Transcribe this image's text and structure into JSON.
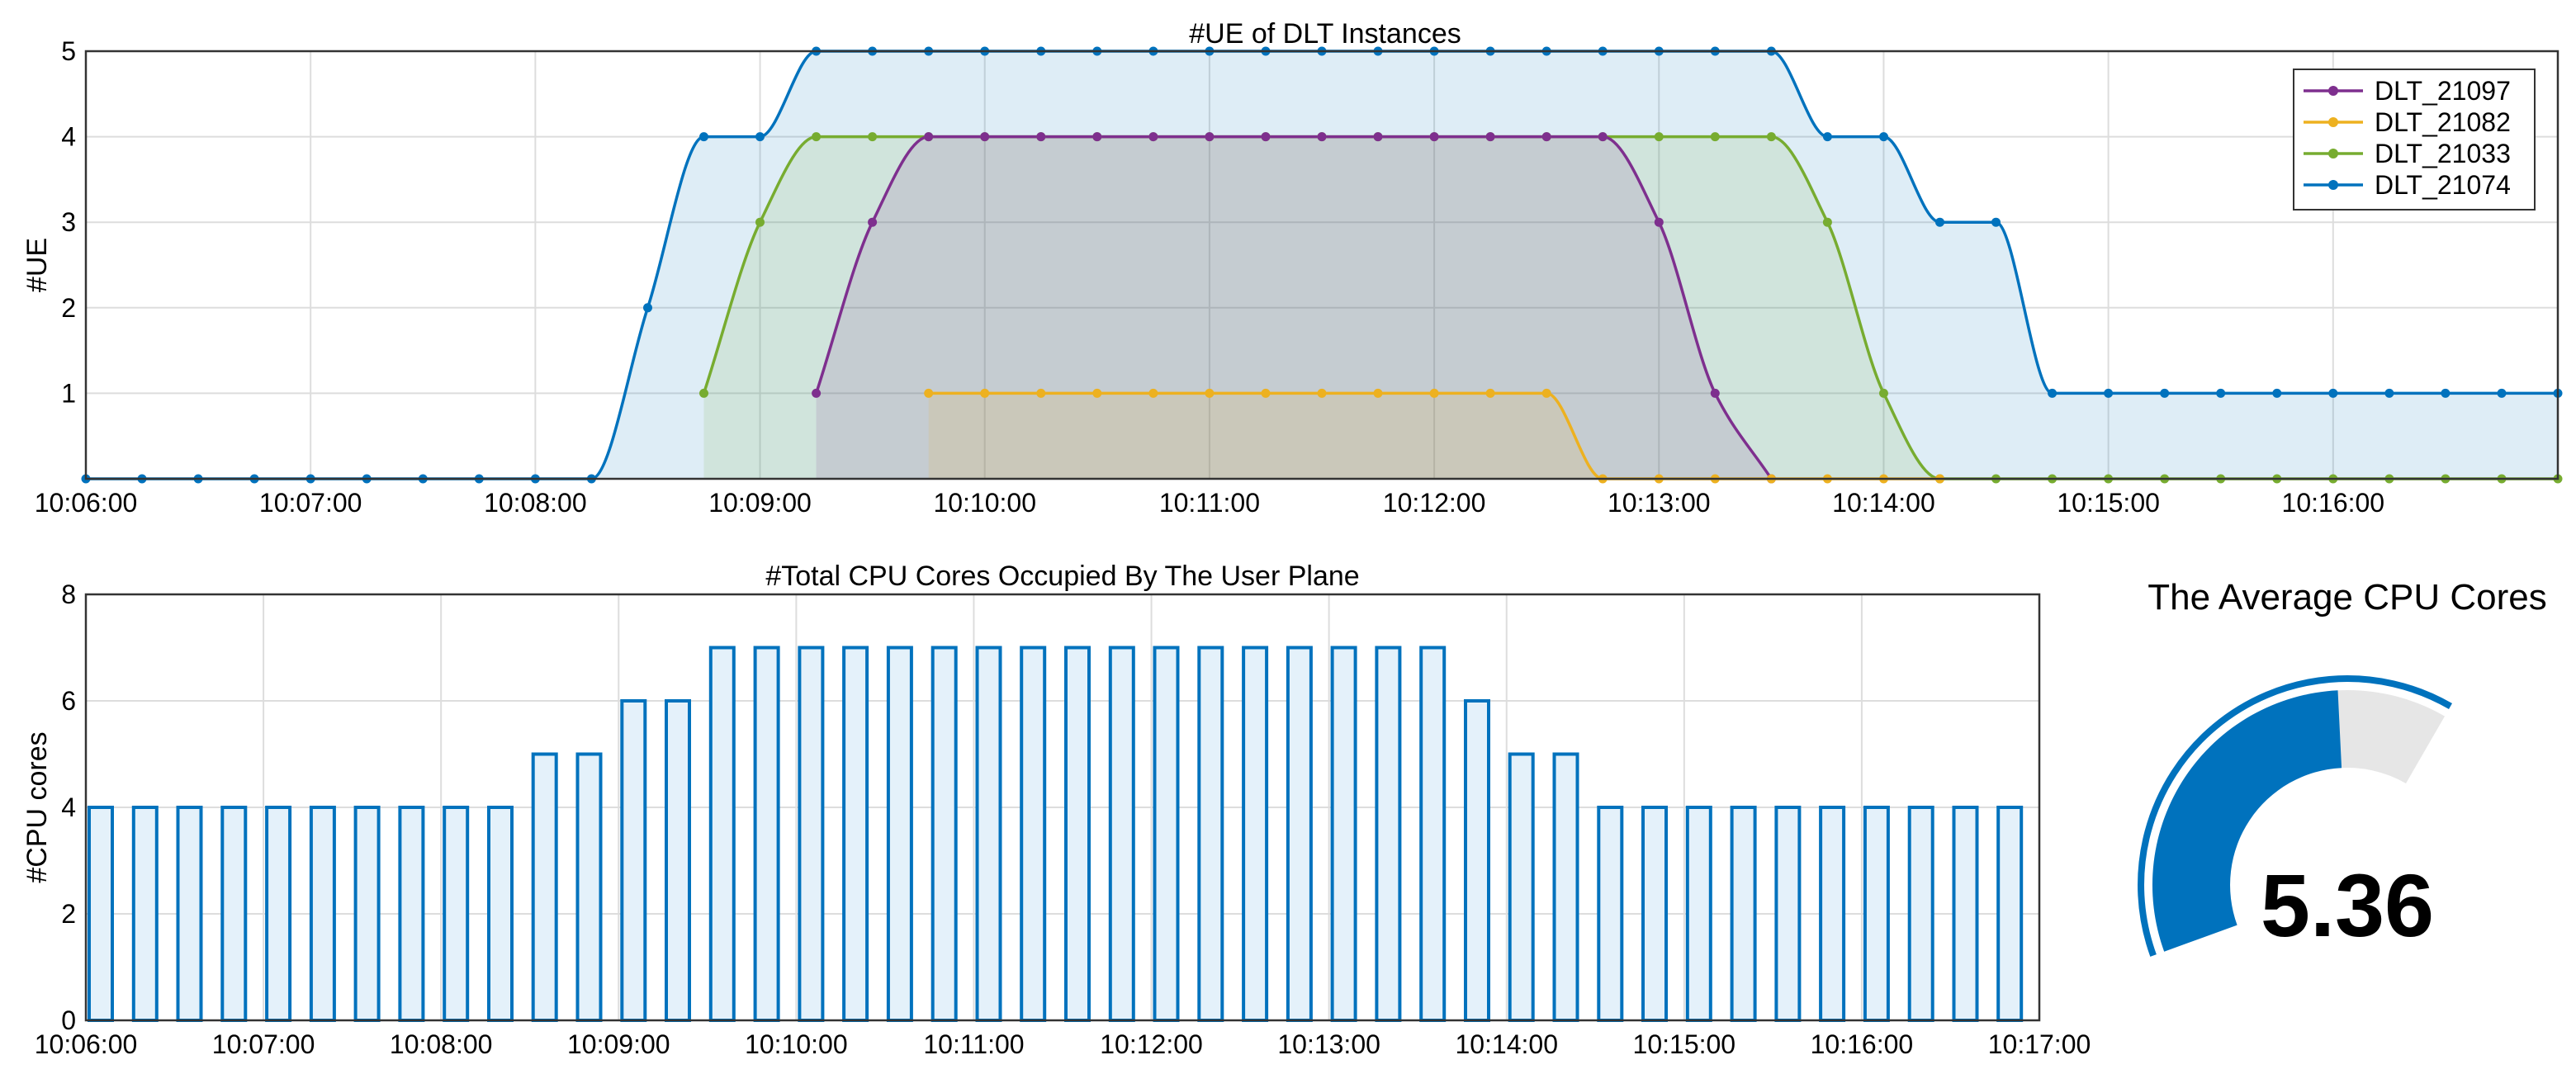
{
  "chart_data": [
    {
      "type": "area",
      "title": "#UE of DLT Instances",
      "ylabel": "#UE",
      "xlabel": "",
      "ylim": [
        0,
        5
      ],
      "yticks": [
        "1",
        "2",
        "3",
        "4",
        "5"
      ],
      "xlim": [
        "10:06:00",
        "10:17:00"
      ],
      "xticks": [
        "10:06:00",
        "10:07:00",
        "10:08:00",
        "10:09:00",
        "10:10:00",
        "10:11:00",
        "10:12:00",
        "10:13:00",
        "10:14:00",
        "10:15:00",
        "10:16:00"
      ],
      "grid": true,
      "legend": "top-right",
      "series": [
        {
          "name": "DLT_21097",
          "color": "#7e2f8e",
          "points": [
            [
              "10:09:15",
              1
            ],
            [
              "10:09:30",
              3
            ],
            [
              "10:09:45",
              4
            ],
            [
              "10:10:00",
              4
            ],
            [
              "10:10:15",
              4
            ],
            [
              "10:10:30",
              4
            ],
            [
              "10:10:45",
              4
            ],
            [
              "10:11:00",
              4
            ],
            [
              "10:11:15",
              4
            ],
            [
              "10:11:30",
              4
            ],
            [
              "10:11:45",
              4
            ],
            [
              "10:12:00",
              4
            ],
            [
              "10:12:15",
              4
            ],
            [
              "10:12:30",
              4
            ],
            [
              "10:12:45",
              4
            ],
            [
              "10:13:00",
              3
            ],
            [
              "10:13:15",
              1
            ],
            [
              "10:13:30",
              0
            ]
          ]
        },
        {
          "name": "DLT_21082",
          "color": "#edb120",
          "points": [
            [
              "10:09:45",
              1
            ],
            [
              "10:10:00",
              1
            ],
            [
              "10:10:15",
              1
            ],
            [
              "10:10:30",
              1
            ],
            [
              "10:10:45",
              1
            ],
            [
              "10:11:00",
              1
            ],
            [
              "10:11:15",
              1
            ],
            [
              "10:11:30",
              1
            ],
            [
              "10:11:45",
              1
            ],
            [
              "10:12:00",
              1
            ],
            [
              "10:12:15",
              1
            ],
            [
              "10:12:30",
              1
            ],
            [
              "10:12:45",
              0
            ],
            [
              "10:13:00",
              0
            ],
            [
              "10:13:15",
              0
            ],
            [
              "10:13:30",
              0
            ],
            [
              "10:13:45",
              0
            ],
            [
              "10:14:00",
              0
            ],
            [
              "10:14:15",
              0
            ]
          ]
        },
        {
          "name": "DLT_21033",
          "color": "#77ac30",
          "points": [
            [
              "10:08:45",
              1
            ],
            [
              "10:09:00",
              3
            ],
            [
              "10:09:15",
              4
            ],
            [
              "10:09:30",
              4
            ],
            [
              "10:09:45",
              4
            ],
            [
              "10:10:00",
              4
            ],
            [
              "10:10:15",
              4
            ],
            [
              "10:10:30",
              4
            ],
            [
              "10:10:45",
              4
            ],
            [
              "10:11:00",
              4
            ],
            [
              "10:11:15",
              4
            ],
            [
              "10:11:30",
              4
            ],
            [
              "10:11:45",
              4
            ],
            [
              "10:12:00",
              4
            ],
            [
              "10:12:15",
              4
            ],
            [
              "10:12:30",
              4
            ],
            [
              "10:12:45",
              4
            ],
            [
              "10:13:00",
              4
            ],
            [
              "10:13:15",
              4
            ],
            [
              "10:13:30",
              4
            ],
            [
              "10:13:45",
              3
            ],
            [
              "10:14:00",
              1
            ],
            [
              "10:14:15",
              0
            ],
            [
              "10:14:30",
              0
            ],
            [
              "10:14:45",
              0
            ],
            [
              "10:15:00",
              0
            ],
            [
              "10:15:15",
              0
            ],
            [
              "10:15:30",
              0
            ],
            [
              "10:15:45",
              0
            ],
            [
              "10:16:00",
              0
            ],
            [
              "10:16:15",
              0
            ],
            [
              "10:16:30",
              0
            ],
            [
              "10:16:45",
              0
            ],
            [
              "10:17:00",
              0
            ]
          ]
        },
        {
          "name": "DLT_21074",
          "color": "#0072bd",
          "points": [
            [
              "10:06:00",
              0
            ],
            [
              "10:06:15",
              0
            ],
            [
              "10:06:30",
              0
            ],
            [
              "10:06:45",
              0
            ],
            [
              "10:07:00",
              0
            ],
            [
              "10:07:15",
              0
            ],
            [
              "10:07:30",
              0
            ],
            [
              "10:07:45",
              0
            ],
            [
              "10:08:00",
              0
            ],
            [
              "10:08:15",
              0
            ],
            [
              "10:08:30",
              2
            ],
            [
              "10:08:45",
              4
            ],
            [
              "10:09:00",
              4
            ],
            [
              "10:09:15",
              5
            ],
            [
              "10:09:30",
              5
            ],
            [
              "10:09:45",
              5
            ],
            [
              "10:10:00",
              5
            ],
            [
              "10:10:15",
              5
            ],
            [
              "10:10:30",
              5
            ],
            [
              "10:10:45",
              5
            ],
            [
              "10:11:00",
              5
            ],
            [
              "10:11:15",
              5
            ],
            [
              "10:11:30",
              5
            ],
            [
              "10:11:45",
              5
            ],
            [
              "10:12:00",
              5
            ],
            [
              "10:12:15",
              5
            ],
            [
              "10:12:30",
              5
            ],
            [
              "10:12:45",
              5
            ],
            [
              "10:13:00",
              5
            ],
            [
              "10:13:15",
              5
            ],
            [
              "10:13:30",
              5
            ],
            [
              "10:13:45",
              4
            ],
            [
              "10:14:00",
              4
            ],
            [
              "10:14:15",
              3
            ],
            [
              "10:14:30",
              3
            ],
            [
              "10:14:45",
              1
            ],
            [
              "10:15:00",
              1
            ],
            [
              "10:15:15",
              1
            ],
            [
              "10:15:30",
              1
            ],
            [
              "10:15:45",
              1
            ],
            [
              "10:16:00",
              1
            ],
            [
              "10:16:15",
              1
            ],
            [
              "10:16:30",
              1
            ],
            [
              "10:16:45",
              1
            ],
            [
              "10:17:00",
              1
            ]
          ]
        }
      ]
    },
    {
      "type": "bar",
      "title": "#Total CPU Cores Occupied By The User Plane",
      "ylabel": "#CPU cores",
      "xlabel": "",
      "ylim": [
        0,
        8
      ],
      "yticks": [
        "0",
        "2",
        "4",
        "6",
        "8"
      ],
      "xlim": [
        "10:06:00",
        "10:17:00"
      ],
      "xticks": [
        "10:06:00",
        "10:07:00",
        "10:08:00",
        "10:09:00",
        "10:10:00",
        "10:11:00",
        "10:12:00",
        "10:13:00",
        "10:14:00",
        "10:15:00",
        "10:16:00",
        "10:17:00"
      ],
      "grid": true,
      "color": "#0072bd",
      "fill": "#e4f1fa",
      "x": [
        "10:06:00",
        "10:06:15",
        "10:06:30",
        "10:06:45",
        "10:07:00",
        "10:07:15",
        "10:07:30",
        "10:07:45",
        "10:08:00",
        "10:08:15",
        "10:08:30",
        "10:08:45",
        "10:09:00",
        "10:09:15",
        "10:09:30",
        "10:09:45",
        "10:10:00",
        "10:10:15",
        "10:10:30",
        "10:10:45",
        "10:11:00",
        "10:11:15",
        "10:11:30",
        "10:11:45",
        "10:12:00",
        "10:12:15",
        "10:12:30",
        "10:12:45",
        "10:13:00",
        "10:13:15",
        "10:13:30",
        "10:13:45",
        "10:14:00",
        "10:14:15",
        "10:14:30",
        "10:14:45",
        "10:15:00",
        "10:15:15",
        "10:15:30",
        "10:15:45",
        "10:16:00",
        "10:16:15",
        "10:16:30",
        "10:16:45"
      ],
      "values": [
        4,
        4,
        4,
        4,
        4,
        4,
        4,
        4,
        4,
        4,
        5,
        5,
        6,
        6,
        7,
        7,
        7,
        7,
        7,
        7,
        7,
        7,
        7,
        7,
        7,
        7,
        7,
        7,
        7,
        7,
        7,
        6,
        5,
        5,
        4,
        4,
        4,
        4,
        4,
        4,
        4,
        4,
        4,
        4
      ]
    }
  ],
  "gauge": {
    "title": "The Average CPU Cores",
    "value_text": "5.36",
    "value": 5.36,
    "min": 0,
    "max": 7,
    "fill_color": "#0072bd",
    "track_color": "#e6e6e6"
  }
}
